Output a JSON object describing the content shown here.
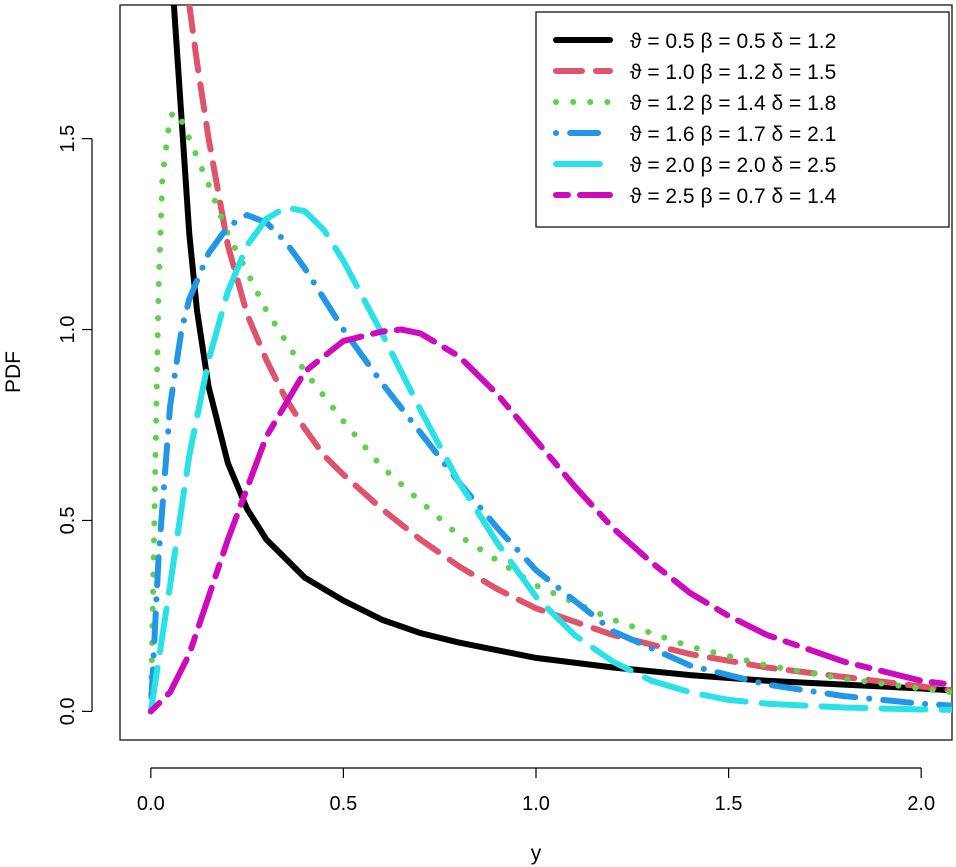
{
  "chart_data": {
    "type": "line",
    "title": "",
    "xlabel": "y",
    "ylabel": "PDF",
    "xlim": [
      -0.08,
      2.08
    ],
    "ylim": [
      -0.075,
      1.85
    ],
    "xticks": [
      0.0,
      0.5,
      1.0,
      1.5,
      2.0
    ],
    "xtick_labels": [
      "0.0",
      "0.5",
      "1.0",
      "1.5",
      "2.0"
    ],
    "yticks": [
      0.0,
      0.5,
      1.0,
      1.5
    ],
    "ytick_labels": [
      "0.0",
      "0.5",
      "1.0",
      "1.5"
    ],
    "legend_position": "top-right",
    "series": [
      {
        "name": "ϑ = 0.5  β = 0.5  δ = 1.2",
        "color": "#000000",
        "style": "solid",
        "x": [
          0.06,
          0.08,
          0.1,
          0.12,
          0.15,
          0.2,
          0.25,
          0.3,
          0.4,
          0.5,
          0.6,
          0.7,
          0.8,
          1.0,
          1.2,
          1.4,
          1.6,
          1.8,
          2.0,
          2.08
        ],
        "values": [
          1.85,
          1.55,
          1.25,
          1.05,
          0.85,
          0.65,
          0.53,
          0.45,
          0.35,
          0.29,
          0.24,
          0.205,
          0.18,
          0.14,
          0.115,
          0.095,
          0.08,
          0.07,
          0.06,
          0.055
        ]
      },
      {
        "name": "ϑ = 1.0  β = 1.2  δ = 1.5",
        "color": "#df536b",
        "style": "dashed",
        "x": [
          0.1,
          0.12,
          0.15,
          0.2,
          0.25,
          0.3,
          0.35,
          0.4,
          0.45,
          0.5,
          0.6,
          0.7,
          0.8,
          0.9,
          1.0,
          1.2,
          1.4,
          1.6,
          1.8,
          2.0,
          2.08
        ],
        "values": [
          1.85,
          1.7,
          1.5,
          1.22,
          1.04,
          0.92,
          0.82,
          0.74,
          0.67,
          0.62,
          0.53,
          0.45,
          0.38,
          0.32,
          0.27,
          0.2,
          0.15,
          0.115,
          0.09,
          0.065,
          0.055
        ]
      },
      {
        "name": "ϑ = 1.2  β = 1.4  δ = 1.8",
        "color": "#61d04f",
        "style": "dotted",
        "x": [
          0.0,
          0.01,
          0.02,
          0.03,
          0.05,
          0.07,
          0.1,
          0.15,
          0.2,
          0.3,
          0.4,
          0.5,
          0.6,
          0.8,
          1.0,
          1.2,
          1.4,
          1.6,
          1.8,
          2.0,
          2.08
        ],
        "values": [
          0.0,
          0.55,
          1.1,
          1.4,
          1.56,
          1.57,
          1.5,
          1.38,
          1.25,
          1.05,
          0.89,
          0.76,
          0.64,
          0.46,
          0.33,
          0.24,
          0.17,
          0.12,
          0.085,
          0.06,
          0.05
        ]
      },
      {
        "name": "ϑ = 1.6  β = 1.7  δ = 2.1",
        "color": "#2297e6",
        "style": "dotdash",
        "x": [
          0.0,
          0.02,
          0.05,
          0.08,
          0.1,
          0.15,
          0.2,
          0.25,
          0.3,
          0.35,
          0.4,
          0.5,
          0.6,
          0.7,
          0.8,
          0.9,
          1.0,
          1.2,
          1.4,
          1.6,
          1.8,
          2.0,
          2.08
        ],
        "values": [
          0.0,
          0.4,
          0.8,
          1.0,
          1.08,
          1.2,
          1.27,
          1.3,
          1.28,
          1.23,
          1.16,
          1.0,
          0.86,
          0.73,
          0.6,
          0.48,
          0.37,
          0.21,
          0.12,
          0.07,
          0.04,
          0.02,
          0.015
        ]
      },
      {
        "name": "ϑ = 2.0  β = 2.0  δ = 2.5",
        "color": "#28e2e5",
        "style": "longdash",
        "x": [
          0.0,
          0.05,
          0.1,
          0.15,
          0.2,
          0.25,
          0.3,
          0.35,
          0.4,
          0.45,
          0.5,
          0.6,
          0.7,
          0.8,
          0.9,
          1.0,
          1.1,
          1.2,
          1.3,
          1.4,
          1.5,
          1.6,
          1.8,
          2.0,
          2.08
        ],
        "values": [
          0.0,
          0.33,
          0.67,
          0.92,
          1.1,
          1.22,
          1.29,
          1.32,
          1.31,
          1.26,
          1.18,
          0.99,
          0.79,
          0.6,
          0.44,
          0.3,
          0.2,
          0.13,
          0.08,
          0.05,
          0.03,
          0.02,
          0.01,
          0.005,
          0.004
        ]
      },
      {
        "name": "ϑ = 2.5  β = 0.7  δ = 1.4",
        "color": "#cd0bbc",
        "style": "twodash",
        "x": [
          0.0,
          0.05,
          0.1,
          0.15,
          0.2,
          0.3,
          0.4,
          0.5,
          0.6,
          0.65,
          0.7,
          0.8,
          0.9,
          1.0,
          1.1,
          1.2,
          1.3,
          1.4,
          1.5,
          1.6,
          1.8,
          2.0,
          2.08
        ],
        "values": [
          0.0,
          0.05,
          0.15,
          0.3,
          0.45,
          0.72,
          0.89,
          0.97,
          0.995,
          1.0,
          0.99,
          0.93,
          0.83,
          0.71,
          0.59,
          0.48,
          0.39,
          0.31,
          0.25,
          0.2,
          0.13,
          0.08,
          0.07
        ]
      }
    ]
  }
}
